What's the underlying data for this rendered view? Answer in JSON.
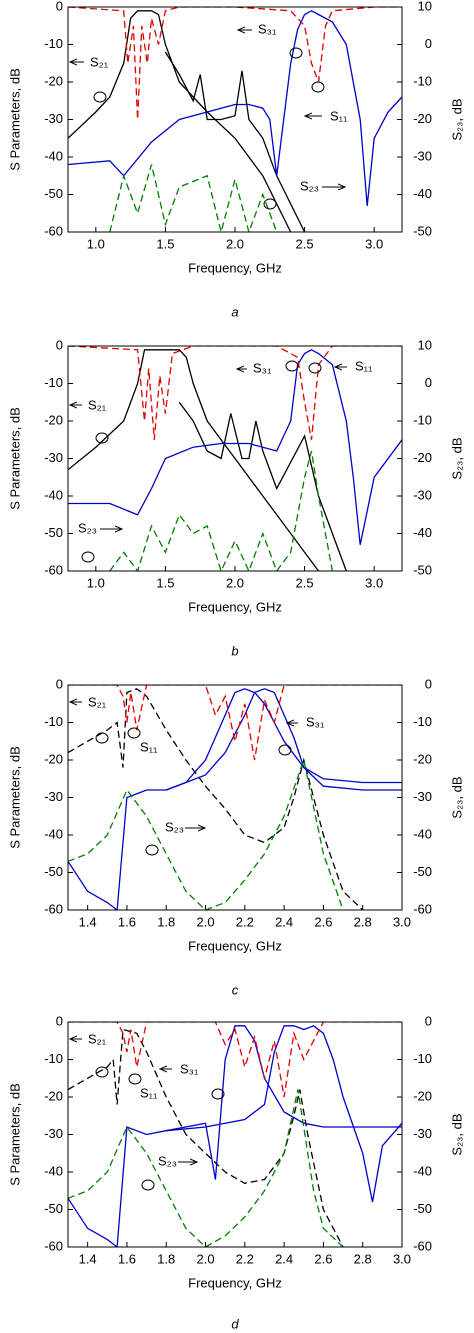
{
  "chart_data": [
    {
      "type": "line",
      "caption": "a",
      "xlabel": "Frequency, GHz",
      "ylabel": "S Parameters, dB",
      "y2label": "S₂₃, dB",
      "xlim": [
        0.8,
        3.2
      ],
      "xticks": [
        {
          "value": 1,
          "label": "1.0"
        },
        1.5,
        {
          "value": 2,
          "label": "2.0"
        },
        2.5,
        {
          "value": 3,
          "label": "3.0"
        }
      ],
      "ylim": [
        -60,
        0
      ],
      "yticks": [
        0,
        -10,
        -20,
        -30,
        -40,
        -50,
        -60
      ],
      "y2lim": [
        -50,
        10
      ],
      "y2ticks": [
        10,
        0,
        -10,
        -20,
        -30,
        -40,
        -50
      ],
      "annotations": [
        "S₂₁",
        "S₃₁",
        "S₁₁",
        "S₂₃"
      ],
      "series": [
        {
          "color": "#000000",
          "dashed": false,
          "x": [
            0.8,
            1.0,
            1.1,
            1.2,
            1.25,
            1.3,
            1.35,
            1.4,
            1.45,
            1.5,
            1.6,
            1.8,
            2.0,
            2.2,
            2.4
          ],
          "values": [
            -35,
            -28,
            -24,
            -15,
            -3,
            -1,
            -1,
            -1,
            -2,
            -10,
            -20,
            -28,
            -35,
            -45,
            -60
          ]
        },
        {
          "color": "#000000",
          "dashed": false,
          "x": [
            1.5,
            1.6,
            1.7,
            1.75,
            1.8,
            1.9,
            2.0,
            2.05,
            2.1,
            2.2,
            2.3,
            2.5
          ],
          "values": [
            -12,
            -18,
            -25,
            -18,
            -30,
            -30,
            -29,
            -17,
            -30,
            -35,
            -45,
            -60
          ]
        },
        {
          "color": "#0000cc",
          "dashed": false,
          "x": [
            0.8,
            1.1,
            1.2,
            1.4,
            1.6,
            1.8,
            2.0,
            2.1,
            2.2,
            2.25,
            2.3,
            2.35,
            2.4,
            2.45,
            2.5,
            2.55,
            2.6,
            2.7,
            2.8,
            2.9,
            2.95,
            3.0,
            3.1,
            3.2
          ],
          "values": [
            -42,
            -41,
            -45,
            -36,
            -30,
            -28,
            -26,
            -26,
            -27,
            -30,
            -45,
            -30,
            -15,
            -6,
            -2,
            -1,
            -2,
            -4,
            -10,
            -30,
            -53,
            -35,
            -28,
            -24
          ]
        },
        {
          "color": "#e00000",
          "dashed": true,
          "x": [
            0.8,
            1.2,
            1.23,
            1.27,
            1.3,
            1.33,
            1.37,
            1.4,
            1.45,
            1.5,
            1.6,
            2.0,
            2.4,
            2.5,
            2.55,
            2.6,
            2.65,
            2.7,
            3.0,
            3.2
          ],
          "values": [
            0,
            -1,
            -15,
            -5,
            -30,
            -5,
            -15,
            -3,
            -10,
            -1,
            0,
            0,
            -1,
            -5,
            -15,
            -20,
            -5,
            -1,
            0,
            0
          ]
        },
        {
          "color": "#008000",
          "dashed": true,
          "axis": "y2",
          "x": [
            1.1,
            1.2,
            1.3,
            1.4,
            1.5,
            1.6,
            1.8,
            1.9,
            2.0,
            2.1,
            2.2,
            2.3
          ],
          "values": [
            -50,
            -35,
            -45,
            -32,
            -48,
            -38,
            -35,
            -50,
            -36,
            -50,
            -40,
            -50
          ]
        }
      ]
    },
    {
      "type": "line",
      "caption": "b",
      "xlabel": "Frequency, GHz",
      "ylabel": "S Parameters, dB",
      "y2label": "S₂₃, dB",
      "xlim": [
        0.8,
        3.2
      ],
      "xticks": [
        {
          "value": 1,
          "label": "1.0"
        },
        1.5,
        {
          "value": 2,
          "label": "2.0"
        },
        2.5,
        {
          "value": 3,
          "label": "3.0"
        }
      ],
      "ylim": [
        -60,
        0
      ],
      "yticks": [
        0,
        -10,
        -20,
        -30,
        -40,
        -50,
        -60
      ],
      "y2lim": [
        -50,
        10
      ],
      "y2ticks": [
        10,
        0,
        -10,
        -20,
        -30,
        -40,
        -50
      ],
      "annotations": [
        "S₂₁",
        "S₃₁",
        "S₁₁",
        "S₂₃"
      ],
      "series": [
        {
          "color": "#000000",
          "dashed": false,
          "x": [
            0.8,
            1.0,
            1.2,
            1.3,
            1.35,
            1.4,
            1.5,
            1.6,
            1.65,
            1.7,
            1.8,
            2.0,
            2.2,
            2.4,
            2.6
          ],
          "values": [
            -33,
            -27,
            -20,
            -10,
            -1,
            -1,
            -1,
            -1,
            -3,
            -10,
            -20,
            -30,
            -40,
            -50,
            -60
          ]
        },
        {
          "color": "#000000",
          "dashed": false,
          "x": [
            1.6,
            1.7,
            1.8,
            1.9,
            1.97,
            2.05,
            2.1,
            2.15,
            2.2,
            2.3,
            2.5,
            2.6,
            2.7,
            2.8
          ],
          "values": [
            -15,
            -20,
            -28,
            -30,
            -18,
            -30,
            -30,
            -20,
            -28,
            -38,
            -24,
            -40,
            -50,
            -60
          ]
        },
        {
          "color": "#0000cc",
          "dashed": false,
          "x": [
            0.8,
            1.1,
            1.3,
            1.4,
            1.5,
            1.7,
            1.9,
            2.1,
            2.3,
            2.4,
            2.45,
            2.5,
            2.55,
            2.6,
            2.7,
            2.8,
            2.85,
            2.9,
            3.0,
            3.2
          ],
          "values": [
            -42,
            -42,
            -45,
            -38,
            -30,
            -27,
            -26,
            -26,
            -28,
            -20,
            -5,
            -2,
            -1,
            -2,
            -5,
            -20,
            -35,
            -53,
            -35,
            -25
          ]
        },
        {
          "color": "#e00000",
          "dashed": true,
          "x": [
            0.8,
            1.3,
            1.35,
            1.38,
            1.42,
            1.46,
            1.5,
            1.55,
            1.7,
            2.3,
            2.45,
            2.5,
            2.55,
            2.6,
            2.7,
            3.2
          ],
          "values": [
            0,
            -1,
            -20,
            -6,
            -25,
            -8,
            -18,
            -2,
            0,
            0,
            -3,
            -15,
            -25,
            -5,
            0,
            0
          ]
        },
        {
          "color": "#008000",
          "dashed": true,
          "axis": "y2",
          "x": [
            1.1,
            1.2,
            1.3,
            1.4,
            1.5,
            1.6,
            1.7,
            1.8,
            1.9,
            2.0,
            2.1,
            2.2,
            2.3,
            2.4,
            2.5,
            2.55,
            2.6,
            2.7
          ],
          "values": [
            -50,
            -45,
            -50,
            -38,
            -45,
            -35,
            -40,
            -38,
            -50,
            -42,
            -50,
            -40,
            -50,
            -45,
            -25,
            -18,
            -30,
            -50
          ]
        }
      ]
    },
    {
      "type": "line",
      "caption": "c",
      "xlabel": "Frequency, GHz",
      "ylabel": "S Parameters, dB",
      "y2label": "S₂₃, dB",
      "xlim": [
        1.3,
        3.0
      ],
      "xticks": [
        1.4,
        1.6,
        1.8,
        {
          "value": 2,
          "label": "2.0"
        },
        2.2,
        2.4,
        2.6,
        2.8,
        {
          "value": 3,
          "label": "3.0"
        }
      ],
      "ylim": [
        -60,
        0
      ],
      "yticks": [
        0,
        -10,
        -20,
        -30,
        -40,
        -50,
        -60
      ],
      "y2lim": [
        -60,
        0
      ],
      "y2ticks": [
        0,
        -10,
        -20,
        -30,
        -40,
        -50,
        -60
      ],
      "annotations": [
        "S₂₁",
        "S₁₁",
        "S₃₁",
        "S₂₃"
      ],
      "series": [
        {
          "color": "#000000",
          "dashed": true,
          "x": [
            1.3,
            1.4,
            1.5,
            1.55,
            1.58,
            1.6,
            1.65,
            1.7,
            1.8,
            1.9,
            2.0,
            2.1,
            2.2,
            2.3,
            2.4,
            2.45,
            2.5,
            2.55,
            2.6,
            2.7,
            2.8
          ],
          "values": [
            -18,
            -15,
            -12,
            -10,
            -22,
            -2,
            -1,
            -3,
            -12,
            -20,
            -27,
            -33,
            -40,
            -42,
            -38,
            -30,
            -20,
            -30,
            -40,
            -55,
            -60
          ]
        },
        {
          "color": "#0000cc",
          "dashed": false,
          "x": [
            1.3,
            1.4,
            1.5,
            1.55,
            1.6,
            1.7,
            1.8,
            1.9,
            2.0,
            2.1,
            2.15,
            2.2,
            2.25,
            2.3,
            2.35,
            2.4,
            2.5,
            2.6,
            2.8,
            3.0
          ],
          "values": [
            -47,
            -55,
            -58,
            -60,
            -30,
            -28,
            -28,
            -26,
            -20,
            -8,
            -2,
            -1,
            -2,
            -5,
            -10,
            -15,
            -22,
            -25,
            -26,
            -26
          ]
        },
        {
          "color": "#0000cc",
          "dashed": false,
          "x": [
            1.8,
            1.9,
            2.0,
            2.1,
            2.2,
            2.25,
            2.3,
            2.35,
            2.4,
            2.45,
            2.5,
            2.6,
            2.8,
            3.0
          ],
          "values": [
            -28,
            -26,
            -24,
            -18,
            -8,
            -2,
            -1,
            -2,
            -8,
            -14,
            -22,
            -27,
            -28,
            -28
          ]
        },
        {
          "color": "#e00000",
          "dashed": true,
          "x": [
            1.3,
            1.55,
            1.58,
            1.6,
            1.62,
            1.65,
            1.7,
            2.0,
            2.05,
            2.1,
            2.15,
            2.2,
            2.25,
            2.3,
            2.35,
            2.4,
            2.6,
            3.0
          ],
          "values": [
            0,
            0,
            -3,
            -10,
            -2,
            -12,
            0,
            0,
            -8,
            -3,
            -15,
            -5,
            -20,
            -4,
            -10,
            0,
            0,
            0
          ]
        },
        {
          "color": "#008000",
          "dashed": true,
          "axis": "y2",
          "x": [
            1.3,
            1.4,
            1.5,
            1.6,
            1.7,
            1.8,
            1.9,
            2.0,
            2.1,
            2.2,
            2.3,
            2.4,
            2.5,
            2.6,
            2.7
          ],
          "values": [
            -47,
            -45,
            -40,
            -28,
            -35,
            -45,
            -55,
            -60,
            -58,
            -52,
            -45,
            -35,
            -20,
            -45,
            -60
          ]
        }
      ]
    },
    {
      "type": "line",
      "caption": "d",
      "xlabel": "Frequency, GHz",
      "ylabel": "S Parameters, dB",
      "y2label": "S₂₃, dB",
      "xlim": [
        1.3,
        3.0
      ],
      "xticks": [
        1.4,
        1.6,
        1.8,
        {
          "value": 2,
          "label": "2.0"
        },
        2.2,
        2.4,
        2.6,
        2.8,
        {
          "value": 3,
          "label": "3.0"
        }
      ],
      "ylim": [
        -60,
        0
      ],
      "yticks": [
        0,
        -10,
        -20,
        -30,
        -40,
        -50,
        -60
      ],
      "y2lim": [
        -60,
        0
      ],
      "y2ticks": [
        0,
        -10,
        -20,
        -30,
        -40,
        -50,
        -60
      ],
      "annotations": [
        "S₂₁",
        "S₁₁",
        "S₃₁",
        "S₂₃"
      ],
      "series": [
        {
          "color": "#000000",
          "dashed": true,
          "x": [
            1.3,
            1.4,
            1.5,
            1.53,
            1.55,
            1.58,
            1.65,
            1.7,
            1.8,
            1.9,
            2.0,
            2.1,
            2.2,
            2.3,
            2.4,
            2.45,
            2.48,
            2.52,
            2.6,
            2.7
          ],
          "values": [
            -18,
            -15,
            -12,
            -10,
            -22,
            -2,
            -3,
            -8,
            -20,
            -30,
            -35,
            -40,
            -43,
            -42,
            -35,
            -25,
            -18,
            -30,
            -50,
            -60
          ]
        },
        {
          "color": "#0000cc",
          "dashed": false,
          "x": [
            1.3,
            1.4,
            1.5,
            1.55,
            1.6,
            1.7,
            1.8,
            2.0,
            2.05,
            2.1,
            2.15,
            2.2,
            2.25,
            2.3,
            2.4,
            2.5,
            2.6,
            2.8,
            3.0
          ],
          "values": [
            -47,
            -55,
            -58,
            -60,
            -28,
            -30,
            -29,
            -27,
            -42,
            -10,
            -1,
            -1,
            -5,
            -15,
            -24,
            -27,
            -28,
            -28,
            -28
          ]
        },
        {
          "color": "#0000cc",
          "dashed": false,
          "x": [
            1.8,
            2.0,
            2.2,
            2.3,
            2.35,
            2.4,
            2.45,
            2.5,
            2.55,
            2.6,
            2.65,
            2.7,
            2.8,
            2.85,
            2.9,
            3.0
          ],
          "values": [
            -29,
            -28,
            -26,
            -22,
            -8,
            -1,
            -1,
            -2,
            -1,
            -3,
            -10,
            -20,
            -35,
            -48,
            -33,
            -27
          ]
        },
        {
          "color": "#e00000",
          "dashed": true,
          "x": [
            1.3,
            1.55,
            1.58,
            1.6,
            1.62,
            1.65,
            1.7,
            2.05,
            2.1,
            2.15,
            2.2,
            2.25,
            2.3,
            2.35,
            2.4,
            2.45,
            2.5,
            2.6,
            3.0
          ],
          "values": [
            0,
            0,
            -3,
            -8,
            -2,
            -12,
            0,
            0,
            -6,
            -2,
            -12,
            -4,
            -15,
            -5,
            -20,
            -3,
            -10,
            0,
            0
          ]
        },
        {
          "color": "#008000",
          "dashed": true,
          "axis": "y2",
          "x": [
            1.3,
            1.4,
            1.5,
            1.6,
            1.7,
            1.8,
            1.9,
            2.0,
            2.1,
            2.2,
            2.3,
            2.4,
            2.47,
            2.55,
            2.6,
            2.7
          ],
          "values": [
            -47,
            -45,
            -40,
            -28,
            -35,
            -45,
            -55,
            -60,
            -57,
            -52,
            -45,
            -35,
            -18,
            -45,
            -55,
            -60
          ]
        }
      ]
    }
  ]
}
